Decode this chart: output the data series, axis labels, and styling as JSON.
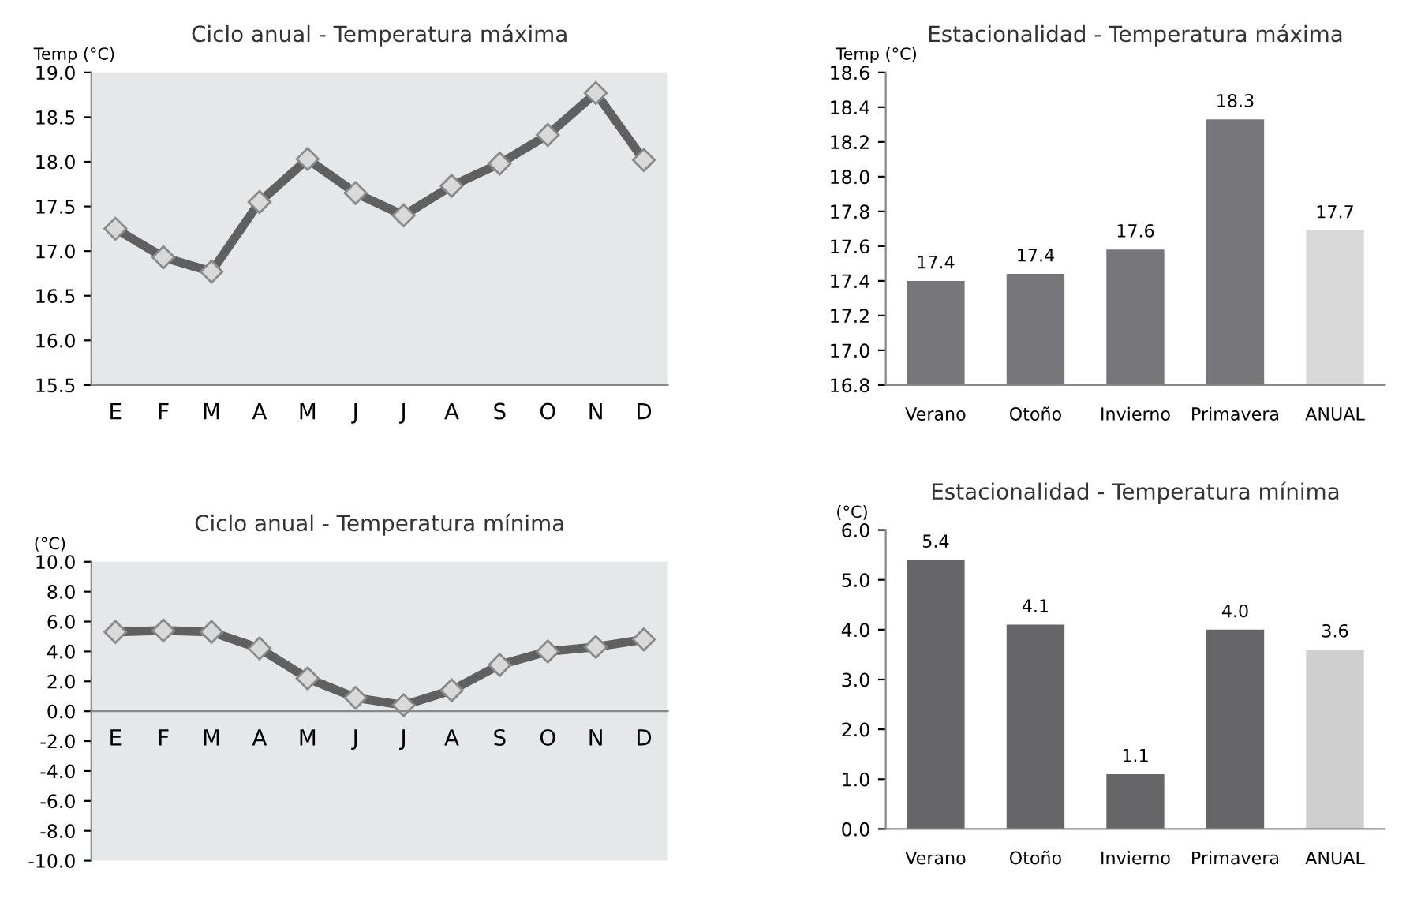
{
  "chart_data": [
    {
      "type": "line",
      "title": "Ciclo anual - Temperatura máxima",
      "ylabel": "Temp (°C)",
      "categories": [
        "E",
        "F",
        "M",
        "A",
        "M",
        "J",
        "J",
        "A",
        "S",
        "O",
        "N",
        "D"
      ],
      "series": [
        {
          "color": "#606060",
          "values": [
            17.25,
            16.93,
            16.77,
            17.55,
            18.03,
            17.65,
            17.4,
            17.73,
            17.98,
            18.3,
            18.77,
            18.02
          ]
        }
      ],
      "ylim": [
        15.5,
        19.0
      ],
      "yticks": [
        {
          "value": 15.5,
          "label": "15.5"
        },
        {
          "value": 16,
          "label": "16.0"
        },
        {
          "value": 16.5,
          "label": "16.5"
        },
        {
          "value": 17,
          "label": "17.0"
        },
        {
          "value": 17.5,
          "label": "17.5"
        },
        {
          "value": 18,
          "label": "18.0"
        },
        {
          "value": 18.5,
          "label": "18.5"
        },
        {
          "value": 19,
          "label": "19.0"
        }
      ],
      "marker": "diamond",
      "grid": false,
      "legend": false
    },
    {
      "type": "bar",
      "title": "Estacionalidad - Temperatura máxima",
      "ylabel": "Temp (°C)",
      "categories": [
        "Verano",
        "Otoño",
        "Invierno",
        "Primavera",
        "ANUAL"
      ],
      "values": [
        17.4,
        17.44,
        17.58,
        18.33,
        17.69
      ],
      "value_labels": [
        "17.4",
        "17.4",
        "17.6",
        "18.3",
        "17.7"
      ],
      "colors": [
        "#77777b",
        "#77777b",
        "#77777b",
        "#77777b",
        "#d9d9d9"
      ],
      "ylim": [
        16.8,
        18.6
      ],
      "yticks": [
        {
          "value": 16.8,
          "label": "16.8"
        },
        {
          "value": 17,
          "label": "17.0"
        },
        {
          "value": 17.2,
          "label": "17.2"
        },
        {
          "value": 17.4,
          "label": "17.4"
        },
        {
          "value": 17.6,
          "label": "17.6"
        },
        {
          "value": 17.8,
          "label": "17.8"
        },
        {
          "value": 18,
          "label": "18.0"
        },
        {
          "value": 18.2,
          "label": "18.2"
        },
        {
          "value": 18.4,
          "label": "18.4"
        },
        {
          "value": 18.6,
          "label": "18.6"
        }
      ],
      "grid": false,
      "legend": false
    },
    {
      "type": "line",
      "title": "Ciclo anual - Temperatura mínima",
      "ylabel": "(°C)",
      "categories": [
        "E",
        "F",
        "M",
        "A",
        "M",
        "J",
        "J",
        "A",
        "S",
        "O",
        "N",
        "D"
      ],
      "series": [
        {
          "color": "#606060",
          "values": [
            5.3,
            5.4,
            5.3,
            4.2,
            2.2,
            0.9,
            0.4,
            1.4,
            3.1,
            4.0,
            4.3,
            4.8
          ]
        }
      ],
      "ylim": [
        -10,
        10
      ],
      "yticks": [
        {
          "value": -10,
          "label": "-10.0"
        },
        {
          "value": -8,
          "label": "-8.0"
        },
        {
          "value": -6,
          "label": "-6.0"
        },
        {
          "value": -4,
          "label": "-4.0"
        },
        {
          "value": -2,
          "label": "-2.0"
        },
        {
          "value": 0,
          "label": "0.0"
        },
        {
          "value": 2,
          "label": "2.0"
        },
        {
          "value": 4,
          "label": "4.0"
        },
        {
          "value": 6,
          "label": "6.0"
        },
        {
          "value": 8,
          "label": "8.0"
        },
        {
          "value": 10,
          "label": "10.0"
        }
      ],
      "marker": "diamond",
      "grid": false,
      "legend": false
    },
    {
      "type": "bar",
      "title": "Estacionalidad - Temperatura mínima",
      "ylabel": "(°C)",
      "categories": [
        "Verano",
        "Otoño",
        "Invierno",
        "Primavera",
        "ANUAL"
      ],
      "values": [
        5.4,
        4.1,
        1.1,
        4.0,
        3.6
      ],
      "value_labels": [
        "5.4",
        "4.1",
        "1.1",
        "4.0",
        "3.6"
      ],
      "colors": [
        "#666669",
        "#666669",
        "#666669",
        "#666669",
        "#cfcfcf"
      ],
      "ylim": [
        0,
        6
      ],
      "yticks": [
        {
          "value": 0,
          "label": "0.0"
        },
        {
          "value": 1,
          "label": "1.0"
        },
        {
          "value": 2,
          "label": "2.0"
        },
        {
          "value": 3,
          "label": "3.0"
        },
        {
          "value": 4,
          "label": "4.0"
        },
        {
          "value": 5,
          "label": "5.0"
        },
        {
          "value": 6,
          "label": "6.0"
        }
      ],
      "grid": false,
      "legend": false
    }
  ]
}
